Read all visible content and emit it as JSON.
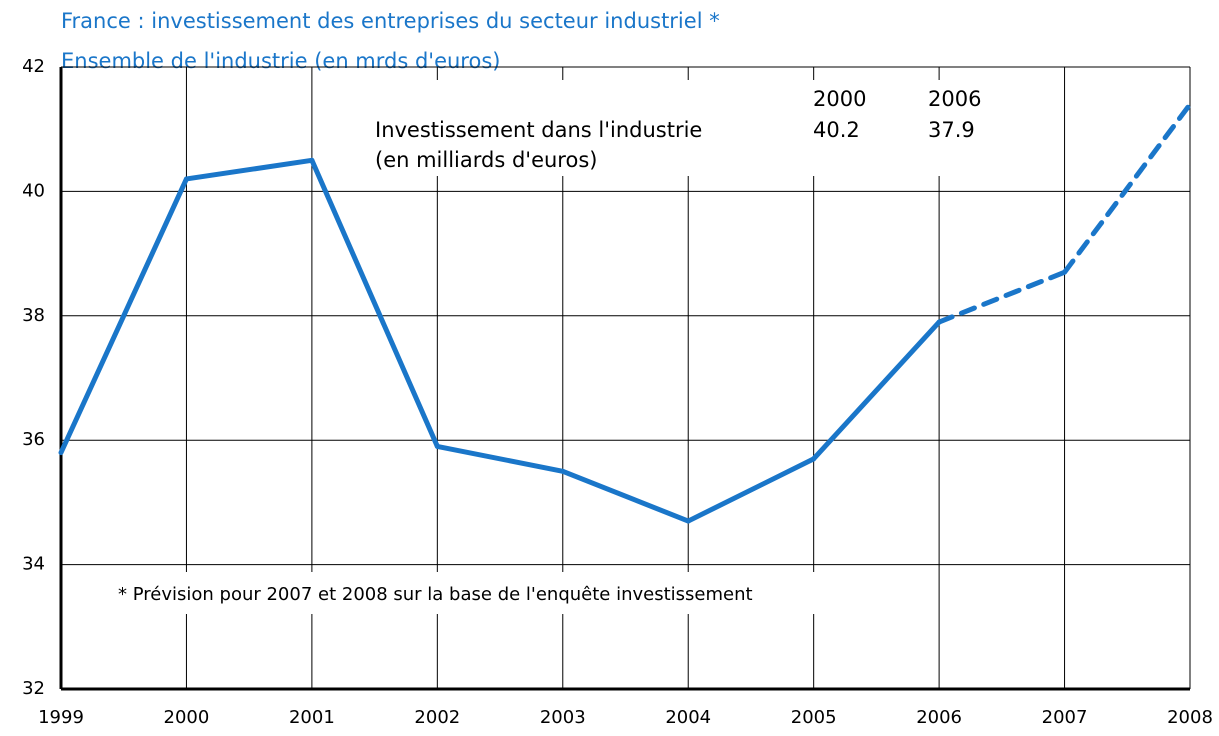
{
  "chart_data": {
    "type": "line",
    "title": "France : investissement des entreprises du secteur industriel *",
    "subtitle": "Ensemble de l'industrie (en mrds d'euros)",
    "categories": [
      "1999",
      "2000",
      "2001",
      "2002",
      "2003",
      "2004",
      "2005",
      "2006",
      "2007",
      "2008"
    ],
    "values": [
      35.8,
      40.2,
      40.5,
      35.9,
      35.5,
      34.7,
      35.7,
      37.9,
      38.7,
      41.4
    ],
    "forecast": [
      false,
      false,
      false,
      false,
      false,
      false,
      false,
      false,
      true,
      true
    ],
    "color": "#1a76c9",
    "ylim": [
      32,
      42
    ],
    "yticks": [
      32,
      34,
      36,
      38,
      40,
      42
    ],
    "grid": true,
    "annotations": {
      "table_header": [
        "2000",
        "2006"
      ],
      "table_label": "Investissement dans l'industrie",
      "table_values": [
        40.2,
        37.9
      ],
      "table_unit": "(en milliards d'euros)",
      "footnote": "* Prévision pour 2007 et 2008 sur la base de l'enquête investissement"
    }
  }
}
